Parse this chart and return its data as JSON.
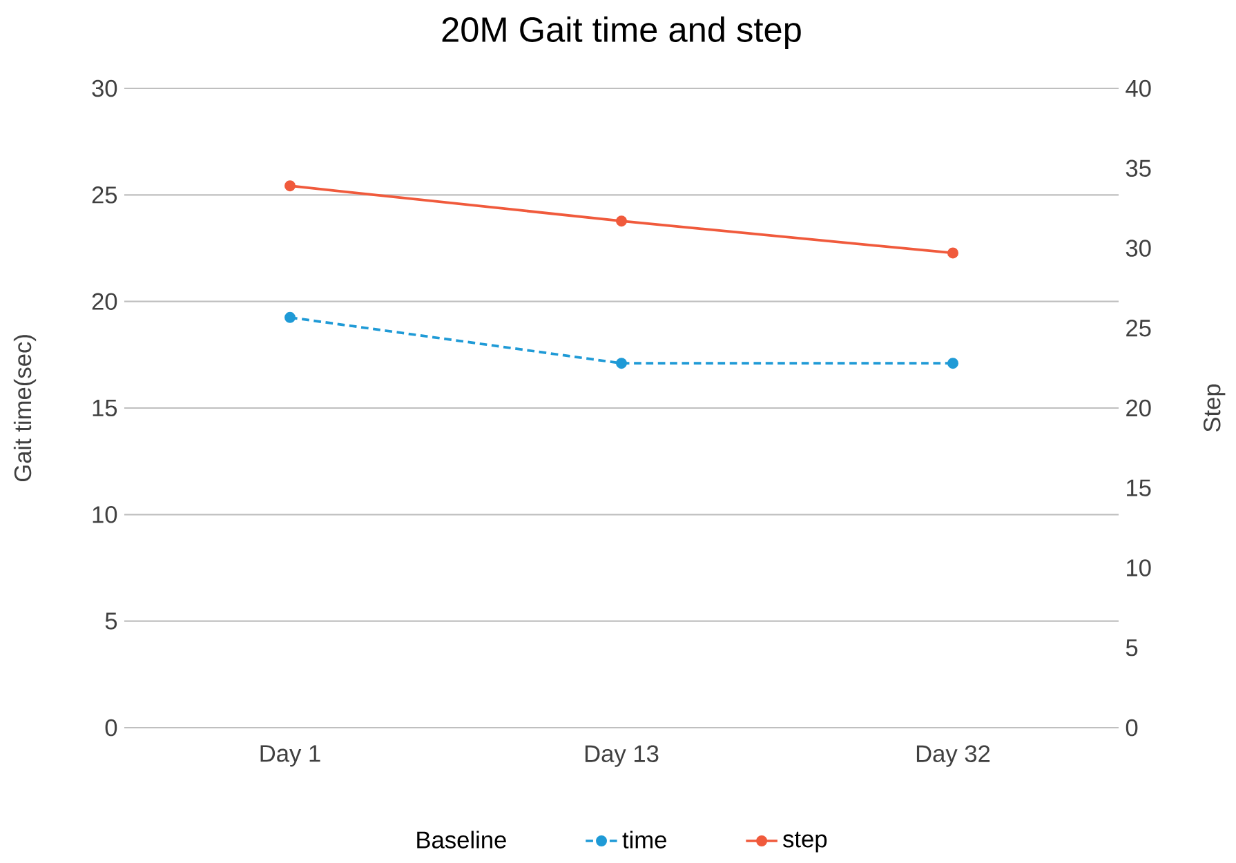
{
  "chart_data": {
    "type": "line",
    "title": "20M Gait time and step",
    "ylabel": "Gait time(sec)",
    "y2label": "Step",
    "legend_title": "Baseline",
    "categories": [
      "Day 1",
      "Day 13",
      "Day 32"
    ],
    "series": [
      {
        "name": "time",
        "color": "#1f9ad6",
        "values": [
          19.25,
          17.1,
          17.1
        ],
        "line_style": "dashed",
        "marker": "circle"
      },
      {
        "name": "step",
        "color": "#f05a3c",
        "values": [
          33.9,
          31.7,
          29.7
        ],
        "axis": "y2",
        "line_style": "solid",
        "marker": "circle"
      }
    ],
    "ylim": [
      0,
      30
    ],
    "yticks": [
      0,
      5,
      10,
      15,
      20,
      25,
      30
    ],
    "y2lim": [
      0,
      40
    ],
    "y2ticks": [
      0,
      5,
      10,
      15,
      20,
      25,
      30,
      35,
      40
    ],
    "grid": "y",
    "legend": "bottom"
  }
}
